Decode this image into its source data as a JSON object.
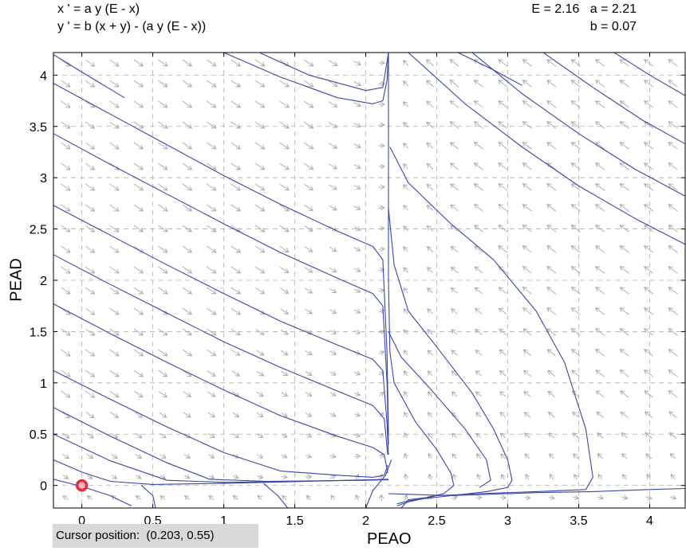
{
  "equations": {
    "line1": "x ' = a y (E - x)",
    "line2": "y ' = b (x + y) - (a y (E - x))"
  },
  "parameters": {
    "line1": "E = 2.16   a = 2.21",
    "line2": "b = 0.07"
  },
  "status": {
    "label": "Cursor position:",
    "value": "(0.203, 0.55)"
  },
  "chart_data": {
    "type": "line",
    "xlabel": "PEAO",
    "ylabel": "PEAD",
    "xlim": [
      -0.2,
      4.25
    ],
    "ylim": [
      -0.22,
      4.22
    ],
    "xticks": [
      0,
      0.5,
      1,
      1.5,
      2,
      2.5,
      3,
      3.5,
      4
    ],
    "xtick_labels": [
      "0",
      "0.5",
      "1",
      "1.5",
      "2",
      "2.5",
      "3",
      "3.5",
      "4"
    ],
    "yticks": [
      0,
      0.5,
      1,
      1.5,
      2,
      2.5,
      3,
      3.5,
      4
    ],
    "ytick_labels": [
      "0",
      "0.5",
      "1",
      "1.5",
      "2",
      "2.5",
      "3",
      "3.5",
      "4"
    ],
    "grid": true,
    "parameters": {
      "E": 2.16,
      "a": 2.21,
      "b": 0.07
    },
    "equilibrium_marker": {
      "x": 0,
      "y": 0,
      "color": "#e0303a"
    },
    "series_color": "#3a46a8",
    "field_color": "#a8a8a8",
    "series": [
      {
        "values": [
          [
            -0.2,
            3.92
          ],
          [
            0.2,
            3.62
          ],
          [
            0.6,
            3.32
          ],
          [
            1.0,
            3.02
          ],
          [
            1.4,
            2.74
          ],
          [
            1.8,
            2.48
          ],
          [
            2.05,
            2.33
          ],
          [
            2.12,
            2.2
          ],
          [
            2.15,
            1.3
          ],
          [
            2.16,
            0.5
          ]
        ]
      },
      {
        "values": [
          [
            -0.2,
            3.43
          ],
          [
            0.2,
            3.13
          ],
          [
            0.6,
            2.84
          ],
          [
            1.0,
            2.55
          ],
          [
            1.4,
            2.27
          ],
          [
            1.8,
            2.02
          ],
          [
            2.05,
            1.87
          ],
          [
            2.12,
            1.75
          ],
          [
            2.15,
            1.0
          ],
          [
            2.16,
            0.4
          ]
        ]
      },
      {
        "values": [
          [
            -0.2,
            2.73
          ],
          [
            0.2,
            2.44
          ],
          [
            0.6,
            2.15
          ],
          [
            1.0,
            1.87
          ],
          [
            1.4,
            1.6
          ],
          [
            1.8,
            1.37
          ],
          [
            2.05,
            1.23
          ],
          [
            2.12,
            1.12
          ],
          [
            2.15,
            0.6
          ],
          [
            2.16,
            0.3
          ]
        ]
      },
      {
        "values": [
          [
            -0.2,
            1.77
          ],
          [
            0.2,
            1.48
          ],
          [
            0.6,
            1.2
          ],
          [
            1.0,
            0.93
          ],
          [
            1.4,
            0.68
          ],
          [
            1.8,
            0.48
          ],
          [
            2.05,
            0.37
          ],
          [
            2.13,
            0.3
          ],
          [
            2.155,
            0.12
          ]
        ]
      },
      {
        "values": [
          [
            -0.2,
            1.12
          ],
          [
            0.2,
            0.84
          ],
          [
            0.6,
            0.57
          ],
          [
            1.0,
            0.32
          ],
          [
            1.4,
            0.14
          ],
          [
            1.8,
            0.1
          ],
          [
            2.05,
            0.08
          ],
          [
            2.13,
            0.1
          ],
          [
            2.155,
            0.2
          ]
        ]
      },
      {
        "values": [
          [
            -0.2,
            0.76
          ],
          [
            0.2,
            0.48
          ],
          [
            0.6,
            0.22
          ],
          [
            0.9,
            0.06
          ],
          [
            1.3,
            0.04
          ],
          [
            2.0,
            0.05
          ],
          [
            2.16,
            0.06
          ]
        ]
      },
      {
        "values": [
          [
            -0.2,
            0.25
          ],
          [
            0.0,
            0.13
          ],
          [
            0.2,
            0.04
          ],
          [
            0.5,
            0.01
          ],
          [
            1.0,
            0.02
          ],
          [
            2.16,
            0.06
          ]
        ]
      },
      {
        "values": [
          [
            -0.2,
            0.06
          ],
          [
            0.0,
            -0.01
          ],
          [
            0.2,
            -0.1
          ],
          [
            0.35,
            -0.2
          ]
        ]
      },
      {
        "values": [
          [
            0.42,
            0.0
          ],
          [
            0.5,
            -0.1
          ],
          [
            0.52,
            -0.22
          ]
        ]
      },
      {
        "values": [
          [
            1.28,
            0.02
          ],
          [
            1.38,
            -0.1
          ],
          [
            1.45,
            -0.22
          ]
        ]
      },
      {
        "values": [
          [
            1.0,
            4.22
          ],
          [
            1.4,
            3.98
          ],
          [
            1.8,
            3.78
          ],
          [
            2.05,
            3.72
          ],
          [
            2.12,
            3.75
          ],
          [
            2.15,
            3.95
          ],
          [
            2.16,
            4.22
          ]
        ]
      },
      {
        "values": [
          [
            1.25,
            4.22
          ],
          [
            1.6,
            4.0
          ],
          [
            2.0,
            3.85
          ],
          [
            2.12,
            3.88
          ],
          [
            2.16,
            4.22
          ]
        ]
      },
      {
        "values": [
          [
            -0.2,
            4.2
          ],
          [
            0.0,
            4.03
          ],
          [
            0.3,
            3.78
          ]
        ]
      },
      {
        "values": [
          [
            2.16,
            4.22
          ],
          [
            2.16,
            2.0
          ],
          [
            2.17,
            1.3
          ],
          [
            2.2,
            1.0
          ],
          [
            2.35,
            0.62
          ],
          [
            2.5,
            0.35
          ],
          [
            2.6,
            0.12
          ],
          [
            2.62,
            0.0
          ],
          [
            2.55,
            -0.08
          ],
          [
            2.42,
            -0.12
          ],
          [
            2.3,
            -0.14
          ],
          [
            2.25,
            -0.22
          ]
        ]
      },
      {
        "values": [
          [
            2.16,
            2.7
          ],
          [
            2.2,
            2.15
          ],
          [
            2.3,
            1.7
          ],
          [
            2.5,
            1.35
          ],
          [
            2.75,
            0.9
          ],
          [
            2.9,
            0.55
          ],
          [
            3.0,
            0.25
          ],
          [
            3.03,
            0.05
          ],
          [
            3.0,
            -0.02
          ],
          [
            2.85,
            -0.06
          ],
          [
            2.6,
            -0.1
          ],
          [
            2.4,
            -0.13
          ],
          [
            2.3,
            -0.15
          ],
          [
            2.22,
            -0.18
          ]
        ]
      },
      {
        "values": [
          [
            2.17,
            3.3
          ],
          [
            2.3,
            2.95
          ],
          [
            2.6,
            2.55
          ],
          [
            2.9,
            2.2
          ],
          [
            3.2,
            1.7
          ],
          [
            3.4,
            1.2
          ],
          [
            3.55,
            0.55
          ],
          [
            3.6,
            0.08
          ],
          [
            3.55,
            -0.04
          ],
          [
            3.2,
            -0.06
          ],
          [
            2.8,
            -0.08
          ],
          [
            2.5,
            -0.1
          ],
          [
            2.3,
            -0.16
          ],
          [
            2.22,
            -0.2
          ]
        ]
      },
      {
        "values": [
          [
            2.3,
            4.22
          ],
          [
            2.7,
            3.72
          ],
          [
            3.1,
            3.3
          ],
          [
            3.5,
            2.92
          ],
          [
            3.9,
            2.6
          ],
          [
            4.25,
            2.35
          ]
        ]
      },
      {
        "values": [
          [
            2.75,
            4.22
          ],
          [
            3.1,
            3.82
          ],
          [
            3.5,
            3.43
          ],
          [
            3.9,
            3.08
          ],
          [
            4.25,
            2.82
          ]
        ]
      },
      {
        "values": [
          [
            3.25,
            4.22
          ],
          [
            3.6,
            3.88
          ],
          [
            3.95,
            3.56
          ],
          [
            4.25,
            3.33
          ]
        ]
      },
      {
        "values": [
          [
            3.75,
            4.22
          ],
          [
            4.0,
            4.0
          ],
          [
            4.25,
            3.8
          ]
        ]
      },
      {
        "values": [
          [
            2.18,
            0.25
          ],
          [
            2.14,
            0.1
          ],
          [
            2.05,
            -0.05
          ],
          [
            2.0,
            -0.22
          ]
        ]
      },
      {
        "values": [
          [
            2.16,
            -0.08
          ],
          [
            2.6,
            -0.1
          ],
          [
            3.2,
            -0.07
          ],
          [
            3.6,
            -0.06
          ],
          [
            4.0,
            -0.04
          ],
          [
            4.25,
            -0.03
          ]
        ]
      },
      {
        "values": [
          [
            2.65,
            4.22
          ],
          [
            2.9,
            4.05
          ],
          [
            3.1,
            3.9
          ]
        ]
      },
      {
        "values": [
          [
            -0.2,
            2.25
          ],
          [
            0.2,
            1.96
          ],
          [
            0.6,
            1.68
          ],
          [
            1.0,
            1.4
          ],
          [
            1.4,
            1.15
          ],
          [
            1.8,
            0.92
          ],
          [
            2.05,
            0.78
          ],
          [
            2.13,
            0.65
          ],
          [
            2.155,
            0.3
          ]
        ]
      },
      {
        "values": [
          [
            -0.2,
            0.5
          ],
          [
            0.2,
            0.24
          ],
          [
            0.6,
            0.05
          ],
          [
            1.0,
            0.03
          ],
          [
            2.16,
            0.055
          ]
        ]
      },
      {
        "values": [
          [
            2.16,
            1.5
          ],
          [
            2.25,
            1.25
          ],
          [
            2.45,
            0.95
          ],
          [
            2.7,
            0.55
          ],
          [
            2.85,
            0.25
          ],
          [
            2.88,
            0.05
          ],
          [
            2.8,
            -0.02
          ]
        ]
      }
    ]
  }
}
